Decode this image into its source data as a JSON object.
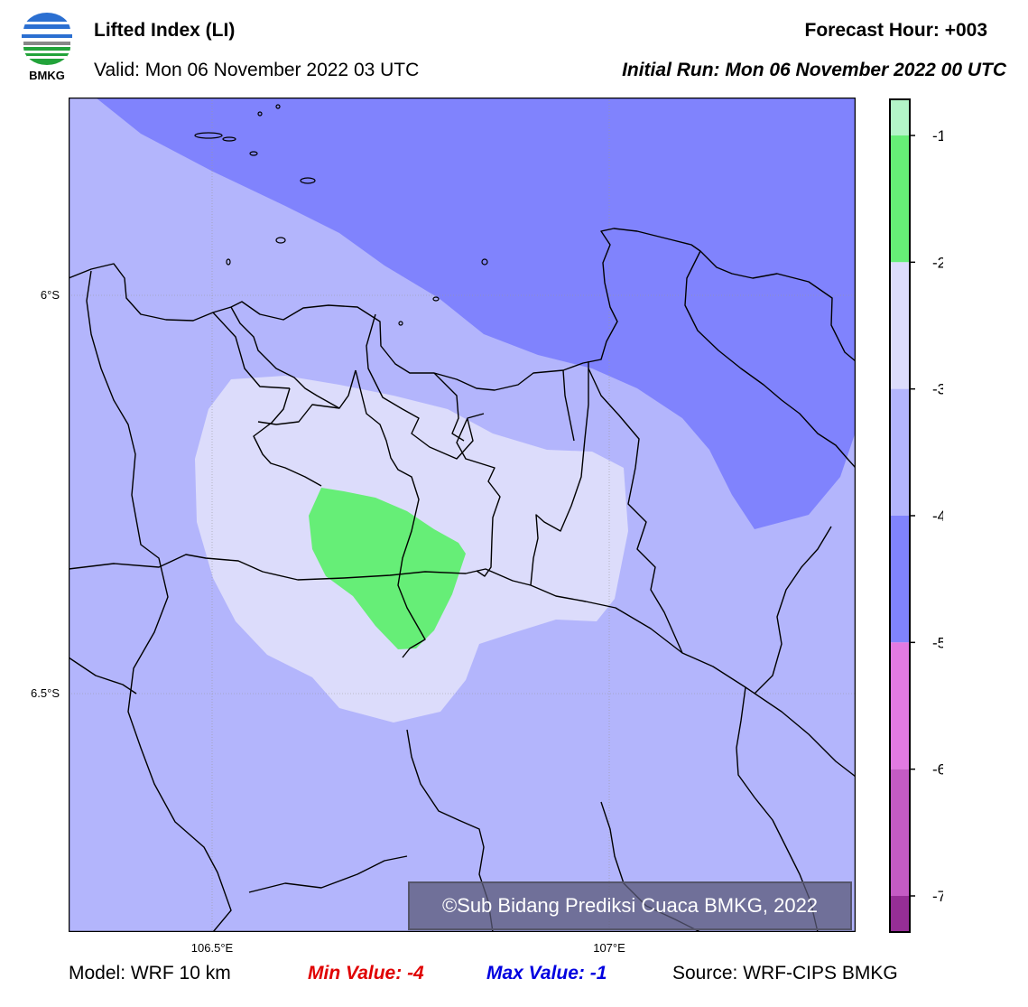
{
  "header": {
    "logo_text": "BMKG",
    "title": "Lifted Index (LI)",
    "valid": "Valid: Mon 06 November 2022 03 UTC",
    "forecast_hour": "Forecast Hour: +003",
    "initial_run": "Initial Run: Mon 06 November 2022 00 UTC"
  },
  "map": {
    "lat_labels": [
      "6°S",
      "6.5°S"
    ],
    "lon_labels": [
      "106.5°E",
      "107°E"
    ],
    "credit": "©Sub Bidang Prediksi Cuaca BMKG, 2022"
  },
  "colorbar": {
    "ticks": [
      "-1",
      "-2",
      "-3",
      "-4",
      "-5",
      "-6",
      "-7"
    ],
    "colors": [
      "#b3f5c8",
      "#66ee77",
      "#dcdcfb",
      "#b3b5fc",
      "#8083fd",
      "#e27ae2",
      "#c45bc4",
      "#962e96"
    ]
  },
  "footer": {
    "model": "Model: WRF 10 km",
    "min_value": "Min Value: -4",
    "max_value": "Max Value: -1",
    "source": "Source: WRF-CIPS BMKG"
  }
}
